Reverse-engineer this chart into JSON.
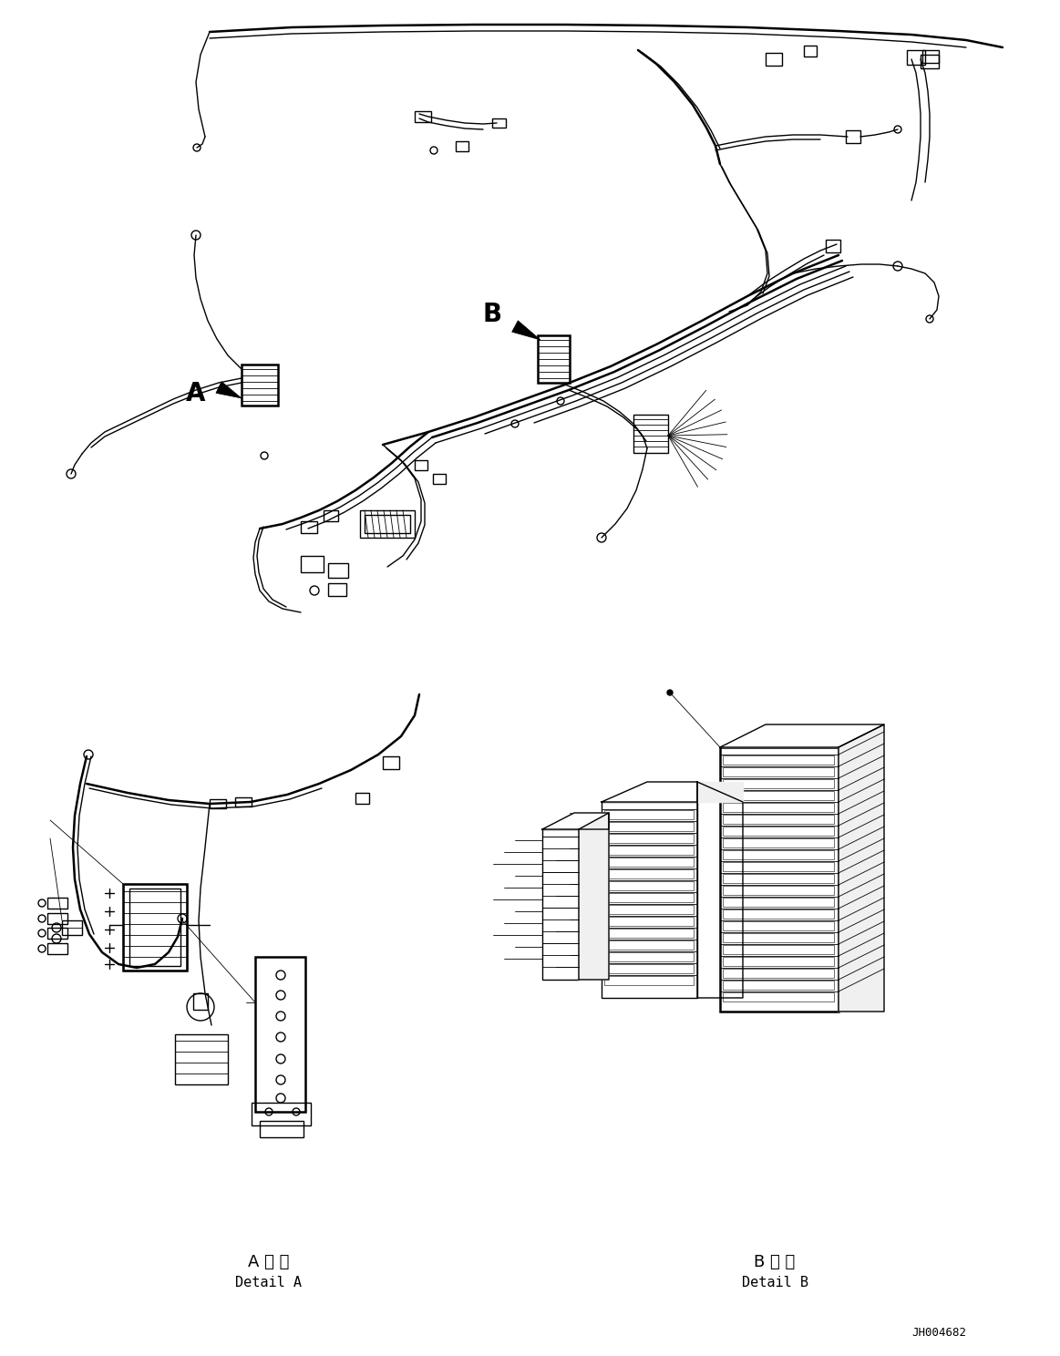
{
  "figsize": [
    11.63,
    14.88
  ],
  "dpi": 100,
  "background_color": "#ffffff",
  "title_code": "JH004682",
  "line_color": "#000000",
  "lw": 1.0,
  "tlw": 0.6,
  "thklw": 1.8,
  "detail_A_japanese": "A 詳 細",
  "detail_A_english": "Detail A",
  "detail_B_japanese": "B 詳 細",
  "detail_B_english": "Detail B",
  "label_A": "A",
  "label_B": "B"
}
